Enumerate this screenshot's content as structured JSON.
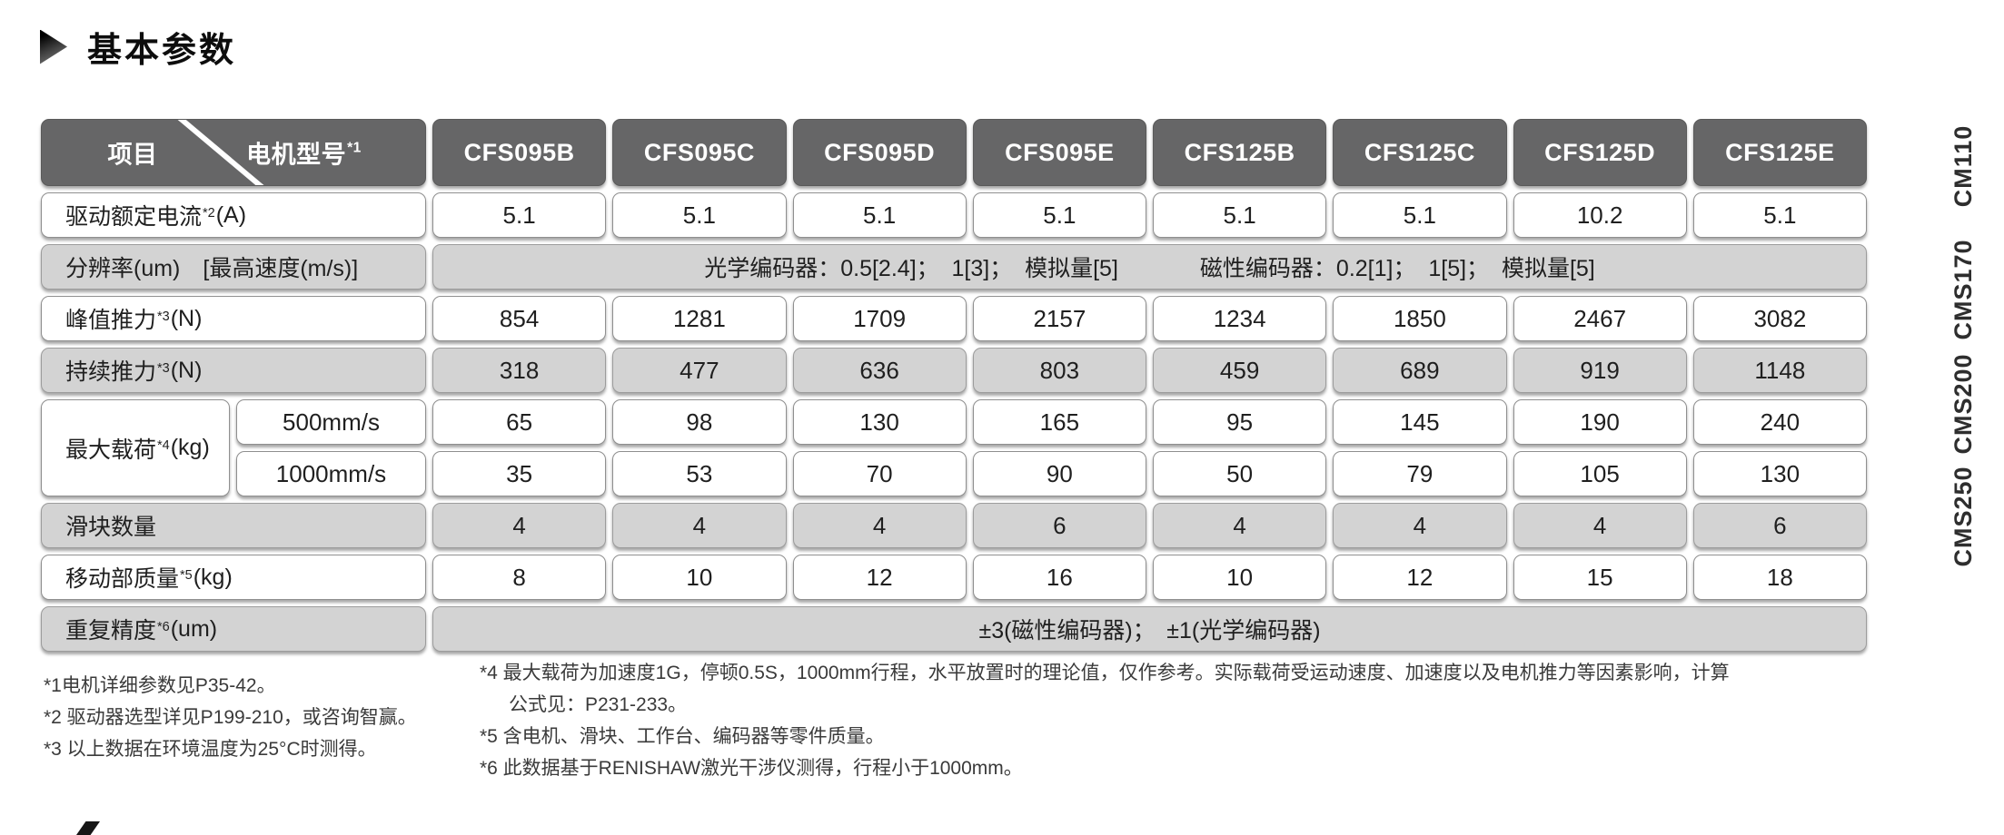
{
  "section": {
    "title": "基本参数"
  },
  "table": {
    "corner": {
      "item_label": "项目",
      "model_label": "电机型号",
      "model_sup": "*1"
    },
    "models": [
      "CFS095B",
      "CFS095C",
      "CFS095D",
      "CFS095E",
      "CFS125B",
      "CFS125C",
      "CFS125D",
      "CFS125E"
    ],
    "rows": [
      {
        "id": "rated-current",
        "type": "values",
        "shade": "light",
        "label": "驱动额定电流",
        "sup": "*2",
        "unit": "(A)",
        "values": [
          "5.1",
          "5.1",
          "5.1",
          "5.1",
          "5.1",
          "5.1",
          "10.2",
          "5.1"
        ]
      },
      {
        "id": "resolution",
        "type": "merged",
        "shade": "gray",
        "label": "分辨率(um)　[最高速度(m/s)]",
        "sup": "",
        "unit": "",
        "merged": [
          "光学编码器：0.5[2.4]；  1[3]；  模拟量[5]",
          "磁性编码器：0.2[1]；  1[5]；  模拟量[5]"
        ]
      },
      {
        "id": "peak-thrust",
        "type": "values",
        "shade": "light",
        "label": "峰值推力",
        "sup": "*3",
        "unit": "(N)",
        "values": [
          "854",
          "1281",
          "1709",
          "2157",
          "1234",
          "1850",
          "2467",
          "3082"
        ]
      },
      {
        "id": "continuous-thrust",
        "type": "values",
        "shade": "gray",
        "label": "持续推力",
        "sup": "*3",
        "unit": "(N)",
        "values": [
          "318",
          "477",
          "636",
          "803",
          "459",
          "689",
          "919",
          "1148"
        ]
      },
      {
        "id": "max-load",
        "type": "group",
        "shade": "light",
        "label": "最大载荷",
        "sup": "*4",
        "unit": "(kg)",
        "sub": [
          {
            "label": "500mm/s",
            "values": [
              "65",
              "98",
              "130",
              "165",
              "95",
              "145",
              "190",
              "240"
            ]
          },
          {
            "label": "1000mm/s",
            "values": [
              "35",
              "53",
              "70",
              "90",
              "50",
              "79",
              "105",
              "130"
            ]
          }
        ]
      },
      {
        "id": "slider-count",
        "type": "values",
        "shade": "gray",
        "label": "滑块数量",
        "sup": "",
        "unit": "",
        "values": [
          "4",
          "4",
          "4",
          "6",
          "4",
          "4",
          "4",
          "6"
        ]
      },
      {
        "id": "moving-mass",
        "type": "values",
        "shade": "light",
        "label": "移动部质量",
        "sup": "*5",
        "unit": "(kg)",
        "values": [
          "8",
          "10",
          "12",
          "16",
          "10",
          "12",
          "15",
          "18"
        ]
      },
      {
        "id": "repeatability",
        "type": "merged",
        "shade": "gray",
        "label": "重复精度",
        "sup": "*6",
        "unit": "(um)",
        "merged": [
          "±3(磁性编码器)；　±1(光学编码器)"
        ]
      }
    ]
  },
  "footnotes": {
    "left": [
      "*1电机详细参数见P35-42。",
      "*2 驱动器选型详见P199-210，或咨询智赢。",
      "*3 以上数据在环境温度为25°C时测得。"
    ],
    "right": [
      "*4 最大载荷为加速度1G，停顿0.5S，1000mm行程，水平放置时的理论值，仅作参考。实际载荷受运动速度、加速度以及电机推力等因素影响，计算",
      "公式见：P231-233。",
      "*5 含电机、滑块、工作台、编码器等零件质量。",
      "*6 此数据基于RENISHAW激光干涉仪测得，行程小于1000mm。"
    ]
  },
  "side_labels": [
    "CM110",
    "CMS170",
    "CMS200",
    "CMS250"
  ],
  "colors": {
    "header_bg": "#666667",
    "row_gray": "#d3d3d3",
    "row_light": "#ffffff",
    "border": "#8f8f8f",
    "text": "#1f1f1f",
    "header_text": "#ffffff"
  }
}
